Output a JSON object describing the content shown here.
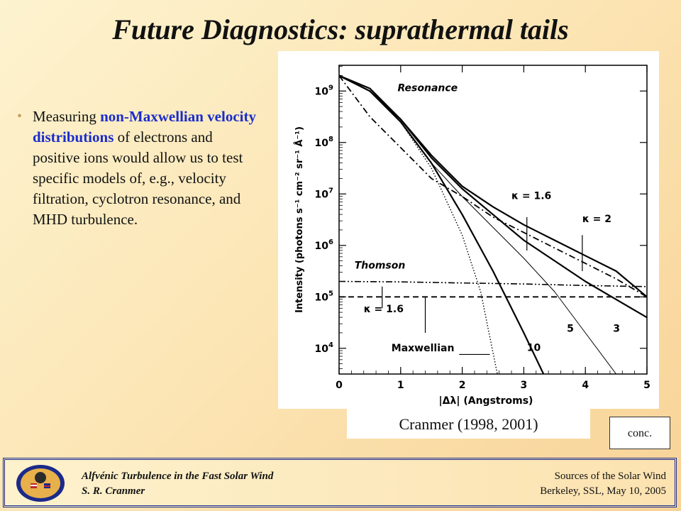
{
  "slide": {
    "title": "Future Diagnostics:  suprathermal tails",
    "bullet": {
      "before": "Measuring ",
      "highlight": "non-Maxwellian velocity distributions",
      "after": " of electrons and positive ions would allow us to test specific models of, e.g., velocity filtration, cyclotron resonance, and MHD turbulence."
    },
    "caption": "Cranmer (1998, 2001)",
    "conc_button": "conc.",
    "colors": {
      "highlight": "#1a2dcc",
      "footer_border": "#1b2a8a"
    }
  },
  "footer": {
    "left_line1": "Alfvénic Turbulence in the Fast Solar Wind",
    "left_line2": "S. R. Cranmer",
    "right_line1": "Sources of the Solar Wind",
    "right_line2": "Berkeley, SSL, May 10, 2005",
    "logo_text": "SOHO • UVCS"
  },
  "chart_data": {
    "type": "line",
    "xlabel": "|Δλ|  (Angstroms)",
    "ylabel": "Intensity  (photons s⁻¹ cm⁻² sr⁻¹ Å⁻¹)",
    "xlim": [
      0,
      5
    ],
    "ylim_log10": [
      3.5,
      9.5
    ],
    "x_ticks": [
      "0",
      "1",
      "2",
      "3",
      "4",
      "5"
    ],
    "y_ticks": [
      {
        "base": "10",
        "exp": "4"
      },
      {
        "base": "10",
        "exp": "5"
      },
      {
        "base": "10",
        "exp": "6"
      },
      {
        "base": "10",
        "exp": "7"
      },
      {
        "base": "10",
        "exp": "8"
      },
      {
        "base": "10",
        "exp": "9"
      }
    ],
    "annotations": [
      "Resonance",
      "Thomson",
      "κ = 1.6",
      "κ = 2",
      "κ = 1.6",
      "Maxwellian",
      "10",
      "5",
      "3"
    ],
    "series": [
      {
        "name": "Maxwellian",
        "style": "dotted",
        "x": [
          0,
          0.5,
          1.0,
          1.5,
          2.0,
          2.3,
          2.57
        ],
        "log10_y": [
          9.3,
          9.0,
          8.4,
          7.5,
          6.2,
          5.1,
          3.5
        ]
      },
      {
        "name": "10",
        "style": "solid",
        "x": [
          0,
          0.5,
          1.0,
          1.5,
          2.0,
          2.5,
          3.0,
          3.32
        ],
        "log10_y": [
          9.3,
          9.0,
          8.4,
          7.6,
          6.6,
          5.5,
          4.3,
          3.5
        ]
      },
      {
        "name": "5",
        "style": "thin",
        "x": [
          0,
          0.5,
          1.0,
          1.5,
          2.0,
          2.5,
          3.0,
          3.5,
          4.0,
          4.5
        ],
        "log10_y": [
          9.3,
          9.05,
          8.4,
          7.6,
          6.95,
          6.35,
          5.75,
          5.1,
          4.3,
          3.5
        ]
      },
      {
        "name": "3",
        "style": "solid",
        "x": [
          0,
          0.5,
          1.0,
          1.5,
          2.0,
          2.5,
          3.0,
          3.5,
          4.0,
          4.5,
          5.0
        ],
        "log10_y": [
          9.3,
          9.05,
          8.45,
          7.7,
          7.1,
          6.6,
          6.1,
          5.7,
          5.3,
          4.95,
          4.6
        ]
      },
      {
        "name": "κ = 2",
        "style": "solid",
        "x": [
          0,
          0.5,
          1.0,
          1.5,
          2.0,
          2.5,
          3.0,
          3.5,
          4.0,
          4.5,
          5.0
        ],
        "log10_y": [
          9.3,
          9.0,
          8.45,
          7.75,
          7.15,
          6.75,
          6.4,
          6.1,
          5.8,
          5.5,
          5.0
        ]
      },
      {
        "name": "κ = 1.6 (Resonance)",
        "style": "dashdot",
        "x": [
          0,
          0.5,
          1.0,
          1.5,
          2.0,
          2.5,
          3.0,
          3.5,
          4.0,
          4.5,
          5.0
        ],
        "log10_y": [
          9.3,
          8.5,
          7.9,
          7.3,
          6.95,
          6.55,
          6.25,
          5.95,
          5.65,
          5.35,
          5.0
        ]
      },
      {
        "name": "κ = 1.6 (Thomson)",
        "style": "dashdotdot",
        "x": [
          0,
          1.0,
          2.0,
          3.0,
          4.0,
          5.0
        ],
        "log10_y": [
          5.3,
          5.29,
          5.27,
          5.25,
          5.22,
          5.2
        ]
      },
      {
        "name": "Maxwellian (Thomson)",
        "style": "dashed",
        "x": [
          0,
          1.0,
          2.0,
          3.0,
          4.0,
          5.0
        ],
        "log10_y": [
          5.0,
          5.0,
          5.0,
          5.0,
          5.0,
          5.0
        ]
      }
    ]
  }
}
